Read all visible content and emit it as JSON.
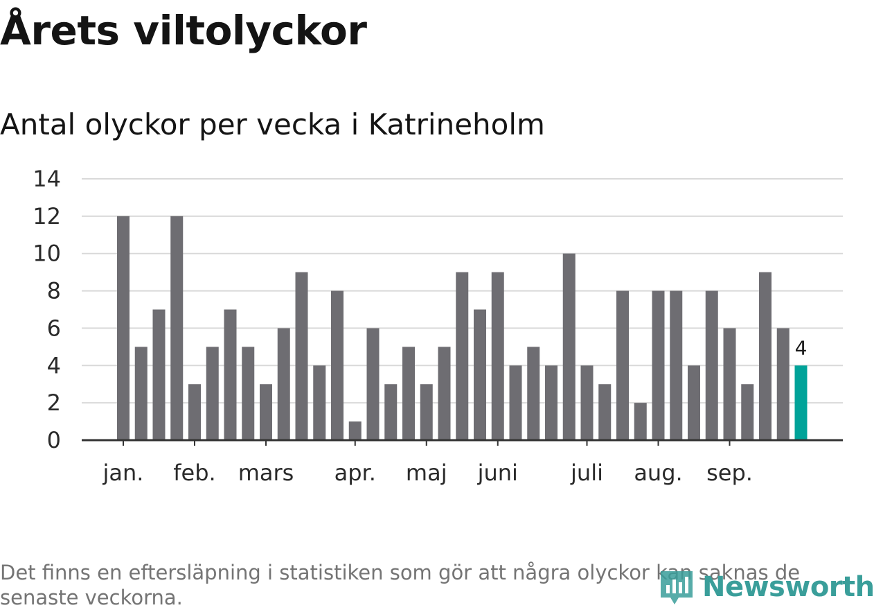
{
  "header": {
    "title": "Årets viltolyckor",
    "subtitle": "Antal olyckor per vecka i Katrineholm"
  },
  "footnote": "Det finns en eftersläpning i statistiken som gör att några olyckor kan saknas de senaste veckorna.",
  "brand": {
    "name": "Newsworthy",
    "icon": "newsworthy-logo-icon"
  },
  "colors": {
    "bar": "#6e6d72",
    "highlight": "#00a399",
    "grid": "#d9d9d9",
    "axis": "#333333"
  },
  "chart_data": {
    "type": "bar",
    "title": "Antal olyckor per vecka i Katrineholm",
    "xlabel": "",
    "ylabel": "",
    "ylim": [
      0,
      14
    ],
    "yticks": [
      0,
      2,
      4,
      6,
      8,
      10,
      12,
      14
    ],
    "grid": true,
    "values": [
      12,
      5,
      7,
      12,
      3,
      5,
      7,
      5,
      3,
      6,
      9,
      4,
      8,
      1,
      6,
      3,
      5,
      3,
      5,
      9,
      7,
      9,
      4,
      5,
      4,
      10,
      4,
      3,
      8,
      2,
      8,
      8,
      4,
      8,
      6,
      3,
      9,
      6,
      4
    ],
    "highlight_index": 38,
    "highlight_label": "4",
    "month_ticks": [
      {
        "label": "jan.",
        "bar_index": 0
      },
      {
        "label": "feb.",
        "bar_index": 4
      },
      {
        "label": "mars",
        "bar_index": 8
      },
      {
        "label": "apr.",
        "bar_index": 13
      },
      {
        "label": "maj",
        "bar_index": 17
      },
      {
        "label": "juni",
        "bar_index": 21
      },
      {
        "label": "juli",
        "bar_index": 26
      },
      {
        "label": "aug.",
        "bar_index": 30
      },
      {
        "label": "sep.",
        "bar_index": 34
      }
    ]
  }
}
